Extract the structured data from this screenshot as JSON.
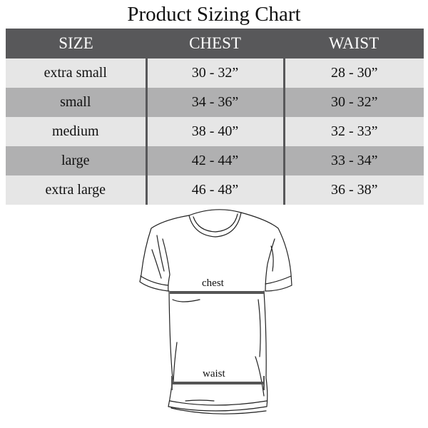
{
  "title": "Product Sizing Chart",
  "table": {
    "headers": [
      "SIZE",
      "CHEST",
      "WAIST"
    ],
    "rows": [
      [
        "extra small",
        "30 - 32”",
        "28 - 30”"
      ],
      [
        "small",
        "34 - 36”",
        "30 - 32”"
      ],
      [
        "medium",
        "38 - 40”",
        "32 - 33”"
      ],
      [
        "large",
        "42 - 44”",
        "33 - 34”"
      ],
      [
        "extra large",
        "46 - 48”",
        "36 - 38”"
      ]
    ]
  },
  "diagram": {
    "chest_label": "chest",
    "waist_label": "waist"
  },
  "colors": {
    "header": "#58585a",
    "row_light": "#e6e6e6",
    "row_dark": "#b0b0b1"
  }
}
